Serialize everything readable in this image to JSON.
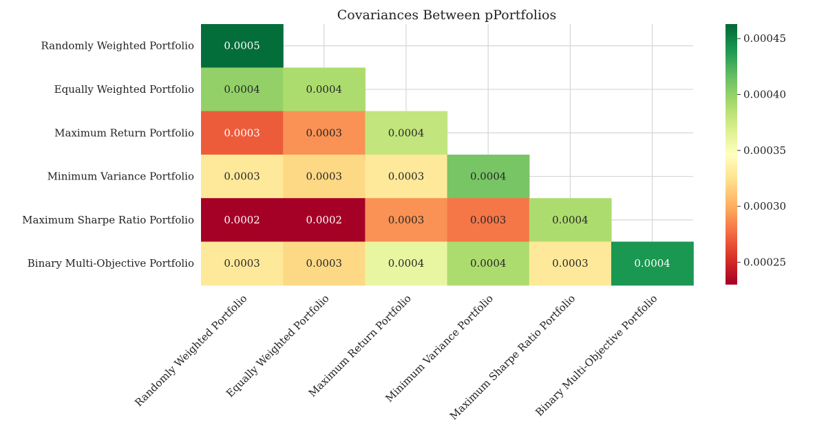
{
  "chart_data": {
    "type": "heatmap",
    "title": "Covariances Between pPortfolios",
    "row_labels": [
      "Randomly Weighted Portfolio",
      "Equally Weighted Portfolio",
      "Maximum Return Portfolio",
      "Minimum Variance Portfolio",
      "Maximum Sharpe Ratio Portfolio",
      "Binary Multi-Objective Portfolio"
    ],
    "col_labels": [
      "Randomly Weighted Portfolio",
      "Equally Weighted Portfolio",
      "Maximum Return Portfolio",
      "Minimum Variance Portfolio",
      "Maximum Sharpe Ratio Portfolio",
      "Binary Multi-Objective Portfolio"
    ],
    "mask": "upper triangle (above diagonal) hidden",
    "values": [
      [
        0.00046,
        null,
        null,
        null,
        null,
        null
      ],
      [
        0.0004,
        0.00039,
        null,
        null,
        null,
        null
      ],
      [
        0.00027,
        0.00029,
        0.00038,
        null,
        null,
        null
      ],
      [
        0.00033,
        0.00032,
        0.00033,
        0.00041,
        null,
        null
      ],
      [
        0.00023,
        0.00023,
        0.00029,
        0.00028,
        0.00039,
        null
      ],
      [
        0.00033,
        0.00032,
        0.00036,
        0.00039,
        0.00033,
        0.00044
      ]
    ],
    "annotations": [
      [
        "0.0005",
        null,
        null,
        null,
        null,
        null
      ],
      [
        "0.0004",
        "0.0004",
        null,
        null,
        null,
        null
      ],
      [
        "0.0003",
        "0.0003",
        "0.0004",
        null,
        null,
        null
      ],
      [
        "0.0003",
        "0.0003",
        "0.0003",
        "0.0004",
        null,
        null
      ],
      [
        "0.0002",
        "0.0002",
        "0.0003",
        "0.0003",
        "0.0004",
        null
      ],
      [
        "0.0003",
        "0.0003",
        "0.0004",
        "0.0004",
        "0.0003",
        "0.0004"
      ]
    ],
    "colormap": "RdYlGn",
    "colormap_stops": [
      "#a50026",
      "#d73027",
      "#f46d43",
      "#fdae61",
      "#fee08b",
      "#ffffbf",
      "#d9ef8b",
      "#a6d96a",
      "#66bd63",
      "#1a9850",
      "#006837"
    ],
    "vmin": 0.00023,
    "vmax": 0.000463,
    "colorbar": {
      "ticks": [
        0.00025,
        0.0003,
        0.00035,
        0.0004,
        0.00045
      ],
      "tick_labels": [
        "0.00025",
        "0.00030",
        "0.00035",
        "0.00040",
        "0.00045"
      ]
    },
    "grid": true,
    "xtick_rotation": 45
  }
}
